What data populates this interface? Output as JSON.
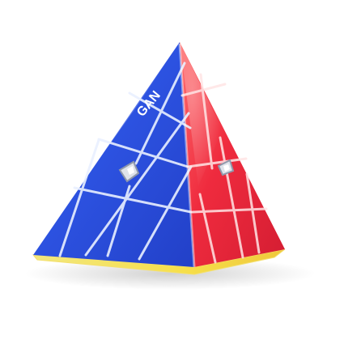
{
  "product": {
    "brand_logo_text": "GAN",
    "colors": {
      "background": "#ffffff",
      "blue_face": "#2f56e6",
      "blue_face_light": "#5c86ff",
      "red_face": "#ef2b3e",
      "red_face_light": "#ff6a6a",
      "yellow_base": "#f6df4a",
      "lines": "#eaf0ff",
      "caps": "#d9dde6"
    }
  }
}
